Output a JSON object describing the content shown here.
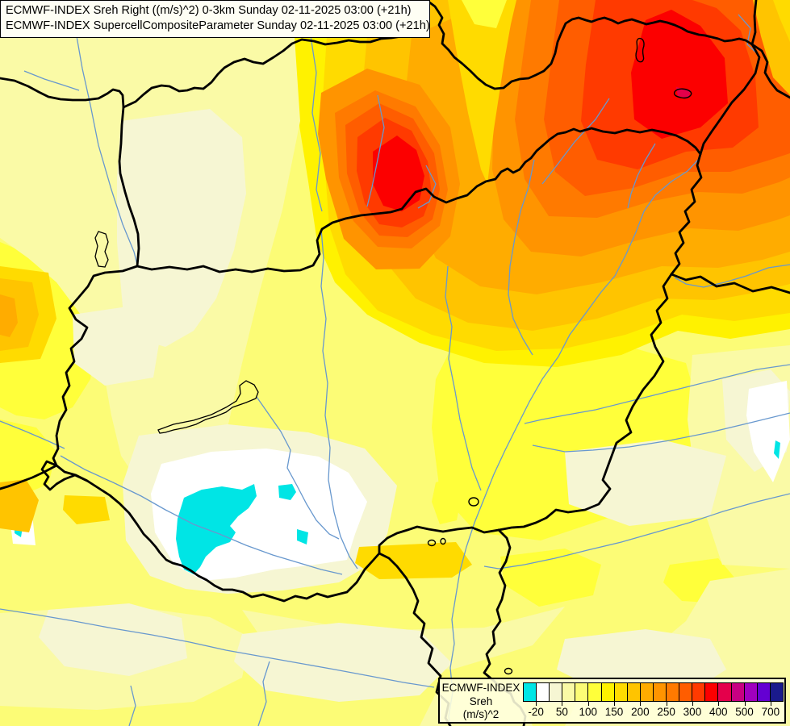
{
  "title_box": {
    "line1": "ECMWF-INDEX Sreh Right ((m/s)^2) 0-3km Sunday 02-11-2025 03:00 (+21h)",
    "line2": "ECMWF-INDEX SupercellCompositeParameter Sunday 02-11-2025 03:00 (+21h)"
  },
  "legend": {
    "product": "ECMWF-INDEX",
    "parameter": "Sreh",
    "units": "(m/s)^2",
    "colorbar_colors": [
      "#00E5E5",
      "#FFFFFF",
      "#F6F6D3",
      "#FAFAA6",
      "#FCFC76",
      "#FFFF3A",
      "#FFF200",
      "#FFDB00",
      "#FFC400",
      "#FFAC00",
      "#FF9400",
      "#FF7A00",
      "#FF5D00",
      "#FF3A00",
      "#FC0000",
      "#E4004B",
      "#C80082",
      "#A000BE",
      "#6400D2",
      "#1A1A8C"
    ],
    "ticks": [
      {
        "after_cell": 1,
        "label": "-20"
      },
      {
        "after_cell": 3,
        "label": "50"
      },
      {
        "after_cell": 5,
        "label": "100"
      },
      {
        "after_cell": 7,
        "label": "150"
      },
      {
        "after_cell": 9,
        "label": "200"
      },
      {
        "after_cell": 11,
        "label": "250"
      },
      {
        "after_cell": 13,
        "label": "300"
      },
      {
        "after_cell": 15,
        "label": "400"
      },
      {
        "after_cell": 17,
        "label": "500"
      },
      {
        "after_cell": 19,
        "label": "700"
      }
    ]
  },
  "map_colors": {
    "country_border": "#000000",
    "river": "#6898CE",
    "lake_outline": "#000000",
    "field_background": "#FCFC76",
    "negative_sreh_cyan": "#00E5E5",
    "maximum_red": "#FC0000"
  }
}
